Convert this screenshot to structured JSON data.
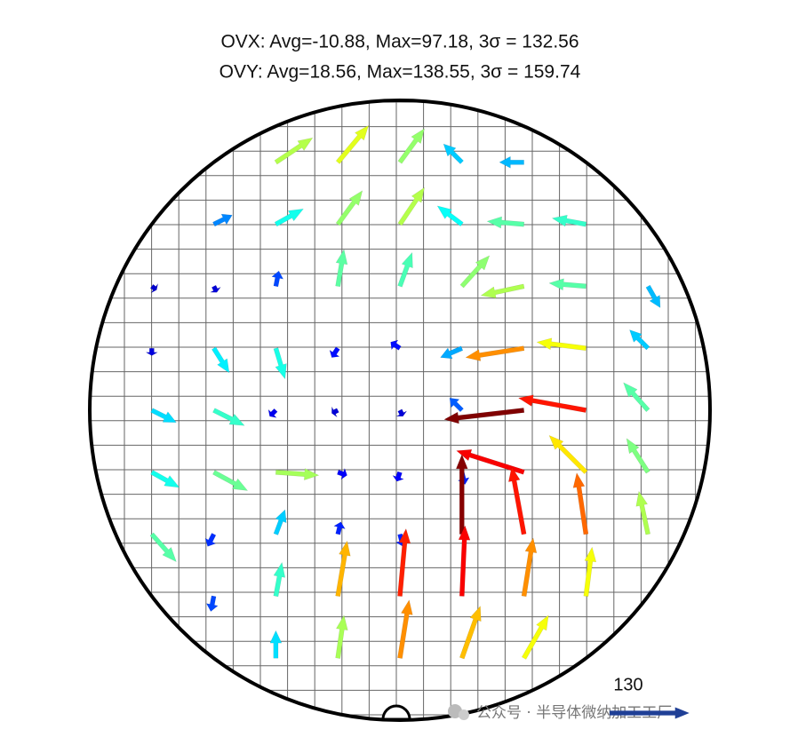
{
  "chart_data": {
    "type": "quiver",
    "title_lines": [
      "OVX: Avg=-10.88, Max=97.18, 3σ = 132.56",
      "OVY: Avg=18.56, Max=138.55, 3σ = 159.74"
    ],
    "x": [
      -60,
      -30,
      0,
      30,
      60,
      -90,
      -60,
      -30,
      0,
      30,
      60,
      90,
      -120,
      -90,
      -60,
      -30,
      0,
      30,
      60,
      90,
      120,
      -120,
      -90,
      -60,
      -30,
      0,
      30,
      60,
      90,
      120,
      -120,
      -90,
      -60,
      -30,
      0,
      30,
      60,
      90,
      120,
      -120,
      -90,
      -60,
      -30,
      0,
      30,
      60,
      90,
      120,
      -120,
      -90,
      -60,
      -30,
      0,
      30,
      60,
      90,
      120,
      -90,
      -60,
      -30,
      0,
      30,
      60,
      90,
      -60,
      -30,
      0,
      30,
      60
    ],
    "y": [
      120,
      120,
      120,
      120,
      120,
      90,
      90,
      90,
      90,
      90,
      90,
      90,
      60,
      60,
      60,
      60,
      60,
      60,
      60,
      60,
      60,
      30,
      30,
      30,
      30,
      30,
      30,
      30,
      30,
      30,
      0,
      0,
      0,
      0,
      0,
      0,
      0,
      0,
      0,
      -30,
      -30,
      -30,
      -30,
      -30,
      -30,
      -30,
      -30,
      -30,
      -60,
      -60,
      -60,
      -60,
      -60,
      -60,
      -60,
      -60,
      -60,
      -90,
      -90,
      -90,
      -90,
      -90,
      -90,
      -90,
      -120,
      -120,
      -120,
      -120,
      -120
    ],
    "u": [
      60,
      50,
      40,
      -30,
      -40,
      30,
      45,
      40,
      40,
      -40,
      -60,
      -55,
      8,
      5,
      5,
      10,
      20,
      45,
      -70,
      -60,
      20,
      0,
      25,
      15,
      -10,
      -15,
      -35,
      -95,
      -80,
      -30,
      40,
      50,
      -10,
      -10,
      5,
      -20,
      -130,
      -110,
      -40,
      45,
      55,
      70,
      15,
      -5,
      5,
      -110,
      -60,
      -35,
      40,
      -10,
      15,
      5,
      5,
      0,
      -20,
      -15,
      -15,
      -5,
      10,
      15,
      10,
      5,
      15,
      10,
      0,
      10,
      15,
      30,
      40
    ],
    "v": [
      40,
      60,
      55,
      30,
      0,
      15,
      25,
      55,
      60,
      30,
      5,
      10,
      -6,
      -10,
      25,
      60,
      55,
      50,
      -15,
      5,
      -35,
      -12,
      -40,
      -50,
      -15,
      10,
      -15,
      -15,
      10,
      30,
      -20,
      -25,
      -10,
      -5,
      -10,
      20,
      -15,
      20,
      45,
      -25,
      -30,
      -5,
      -5,
      -15,
      -20,
      35,
      60,
      55,
      -45,
      -20,
      40,
      20,
      -20,
      130,
      110,
      100,
      70,
      -25,
      55,
      90,
      110,
      115,
      95,
      80,
      45,
      70,
      95,
      85,
      70
    ],
    "colormap": "jet",
    "key_value": 130,
    "key_color": "#1f3f96",
    "grid": true,
    "watermark": "公众号 · 半导体微纳加工工厂"
  }
}
